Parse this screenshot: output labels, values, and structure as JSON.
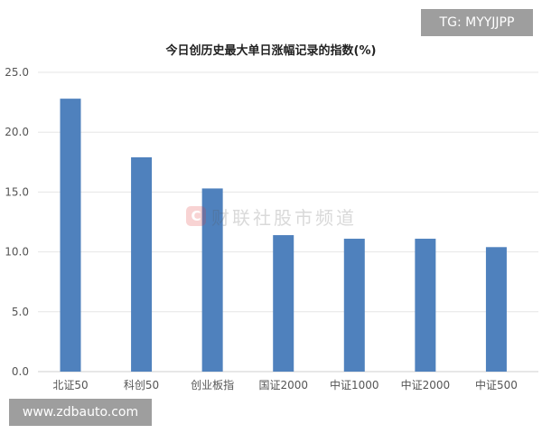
{
  "overlays": {
    "tg_label": "TG: MYYJJPP",
    "site_label": "www.zdbauto.com"
  },
  "watermark": {
    "logo": "C",
    "text": "财联社股市频道"
  },
  "colors": {
    "bar": "#4f81bd",
    "grid": "#e6e6e6",
    "axis_text": "#555555",
    "title": "#222222"
  },
  "chart_data": {
    "type": "bar",
    "title": "今日创历史最大单日涨幅记录的指数(%)",
    "xlabel": "",
    "ylabel": "",
    "categories": [
      "北证50",
      "科创50",
      "创业板指",
      "国证2000",
      "中证1000",
      "中证2000",
      "中证500"
    ],
    "values": [
      22.8,
      17.9,
      15.3,
      11.4,
      11.1,
      11.1,
      10.4
    ],
    "ylim": [
      0,
      25
    ],
    "yticks": [
      "0.0",
      "5.0",
      "10.0",
      "15.0",
      "20.0",
      "25.0"
    ],
    "ytick_values": [
      0,
      5,
      10,
      15,
      20,
      25
    ],
    "grid": true,
    "legend": "none"
  }
}
